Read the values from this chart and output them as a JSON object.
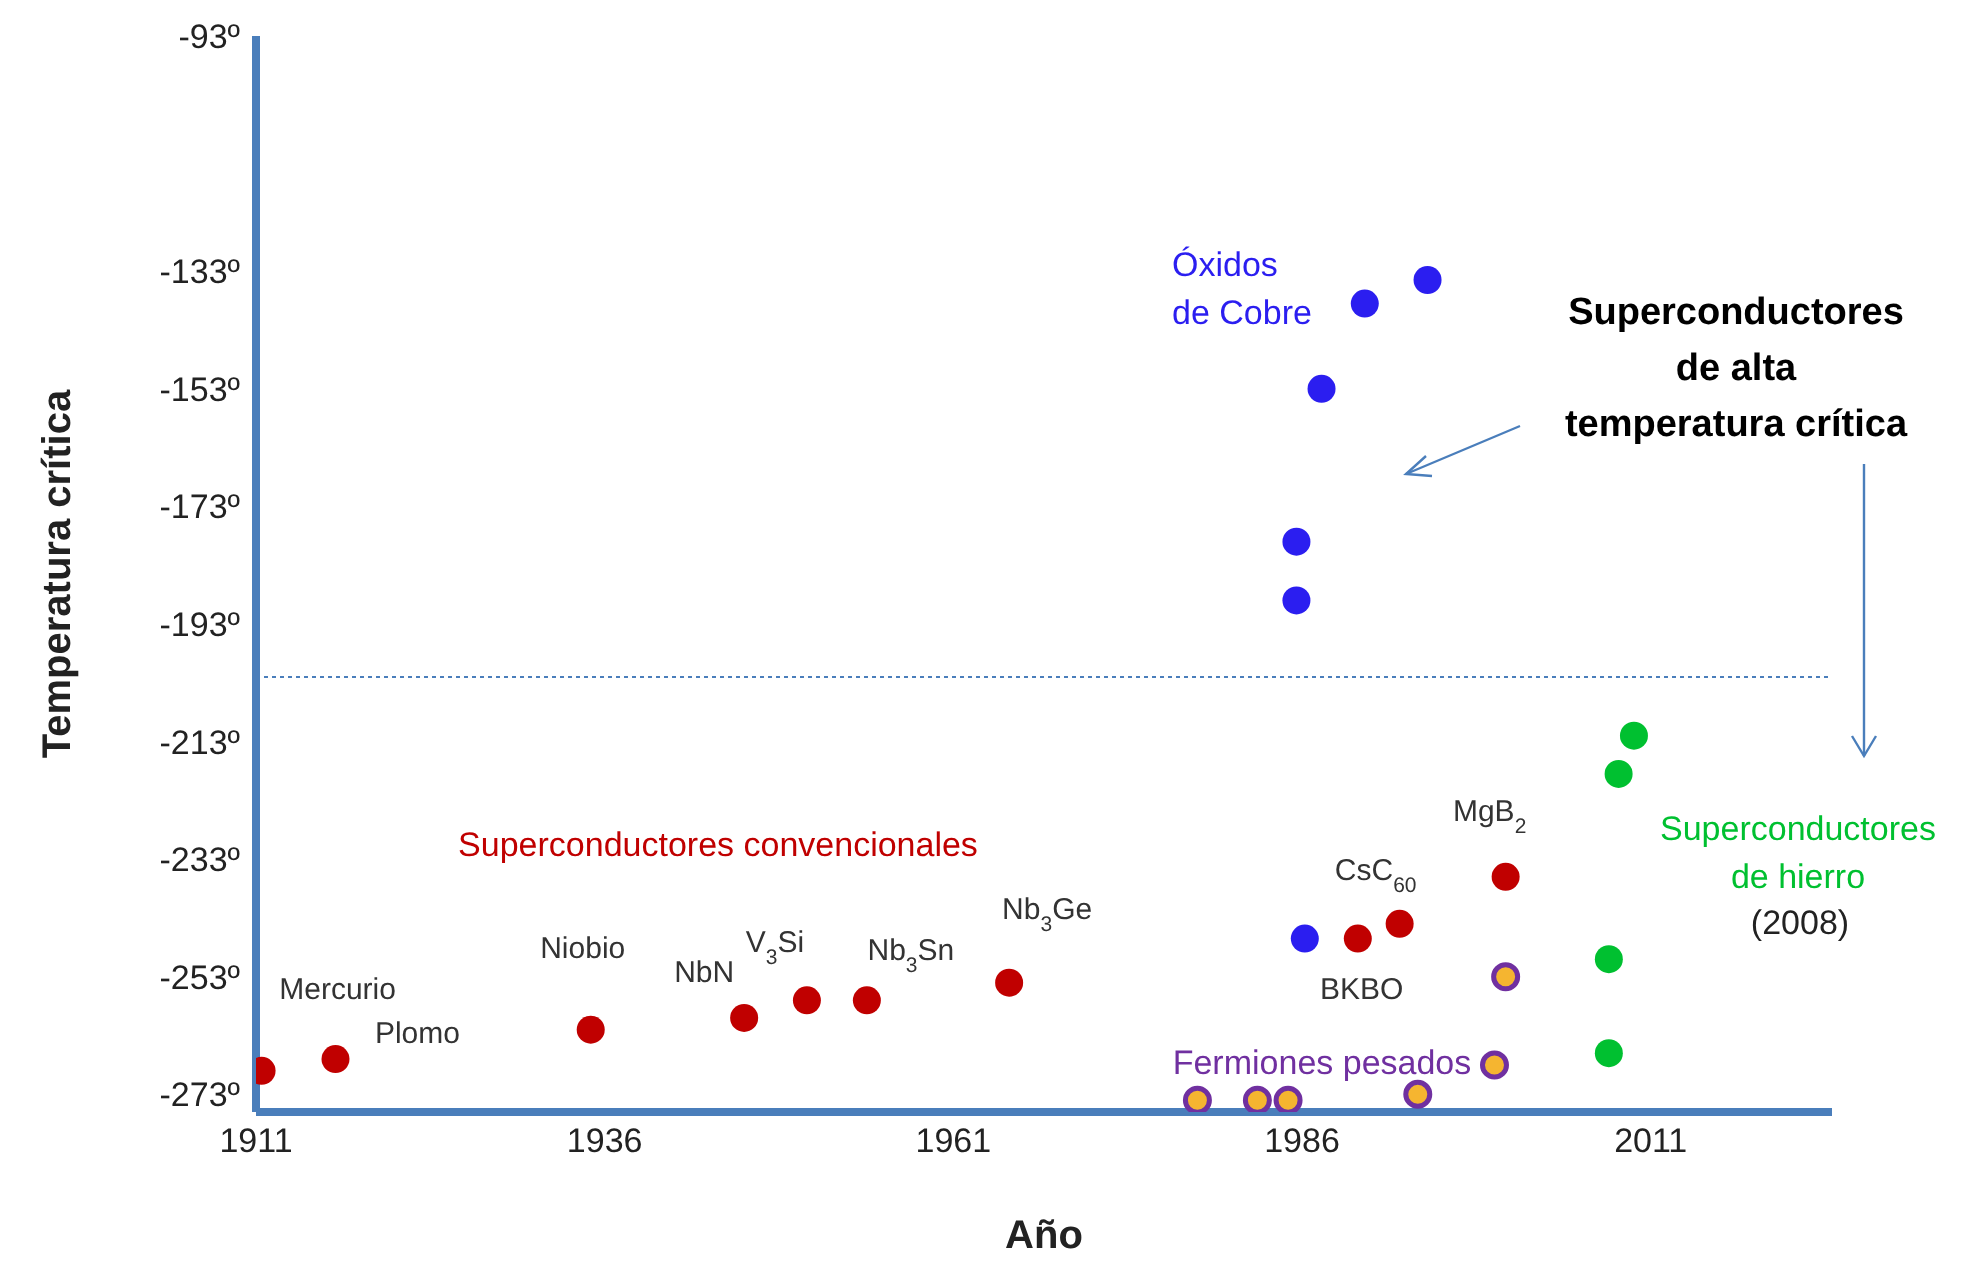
{
  "chart_data": {
    "type": "scatter",
    "xlabel": "Año",
    "ylabel": "Temperatura crítica",
    "xlim": [
      1911,
      2024
    ],
    "xticks": [
      1911,
      1936,
      1961,
      1986,
      2011
    ],
    "ylim": [
      -276,
      -93
    ],
    "yticks": [
      {
        "value": -93,
        "label": "-93º"
      },
      {
        "value": -133,
        "label": "-133º"
      },
      {
        "value": -153,
        "label": "-153º"
      },
      {
        "value": -173,
        "label": "-173º"
      },
      {
        "value": -193,
        "label": "-193º"
      },
      {
        "value": -213,
        "label": "-213º"
      },
      {
        "value": -233,
        "label": "-233º"
      },
      {
        "value": -253,
        "label": "-253º"
      },
      {
        "value": -273,
        "label": "-273º"
      }
    ],
    "grid": false,
    "legend": false,
    "marker": "circle",
    "series": [
      {
        "name": "Superconductores convencionales",
        "color": "#c00000",
        "x": [
          1911.4,
          1916.7,
          1935,
          1946,
          1950.5,
          1954.8,
          1965,
          1990,
          1993,
          2000.6
        ],
        "values": [
          -269,
          -267,
          -262,
          -260,
          -257,
          -257,
          -254,
          -246.5,
          -244,
          -236
        ]
      },
      {
        "name": "Óxidos\nde Cobre",
        "color": "#2b1ef0",
        "x": [
          1995,
          1990.5,
          1987.4,
          1985.6,
          1985.6,
          1986.2
        ],
        "values": [
          -134.5,
          -138.5,
          -153,
          -179,
          -189,
          -246.5
        ]
      },
      {
        "name": "Superconductores\nde hierro",
        "color": "#00c030",
        "x": [
          2009.8,
          2008.7,
          2008,
          2008
        ],
        "values": [
          -212,
          -218.5,
          -250,
          -266
        ]
      },
      {
        "name": "Fermiones pesados",
        "color": "#7030a0",
        "colors": [
          "#f5b530",
          "#f5b530",
          "#f5b530",
          "#f5b530",
          "#f5b530",
          "#f5b530"
        ],
        "x": [
          1978.5,
          1982.8,
          1985,
          1994.3,
          1999.8,
          2000.6
        ],
        "values": [
          -274,
          -274,
          -274,
          -273,
          -268,
          -253
        ]
      }
    ],
    "ref_lines": [
      {
        "axis": "y",
        "value": -202,
        "color": "#4a7ebb",
        "line_style": "dotted"
      }
    ],
    "annotations": [
      {
        "text": "Mercurio",
        "x": 1911.4,
        "y": -269
      },
      {
        "text": "Plomo",
        "x": 1916.7,
        "y": -267
      },
      {
        "text": "Niobio",
        "x": 1935,
        "y": -262
      },
      {
        "text": "NbN",
        "x": 1946,
        "y": -260
      },
      {
        "text": "V$_{3}$Si",
        "x": 1950.5,
        "y": -257
      },
      {
        "text": "Nb$_{3}$Sn",
        "x": 1954.8,
        "y": -257
      },
      {
        "text": "Nb$_{3}$Ge",
        "x": 1965,
        "y": -254
      },
      {
        "text": "BKBO",
        "x": 1990,
        "y": -246.5
      },
      {
        "text": "CsC$_{60}$",
        "x": 1993,
        "y": -244
      },
      {
        "text": "MgB$_{2}$",
        "x": 2000.6,
        "y": -236
      },
      "Superconductores\nde alta\ntemperatura crítica",
      "(2008)"
    ]
  }
}
